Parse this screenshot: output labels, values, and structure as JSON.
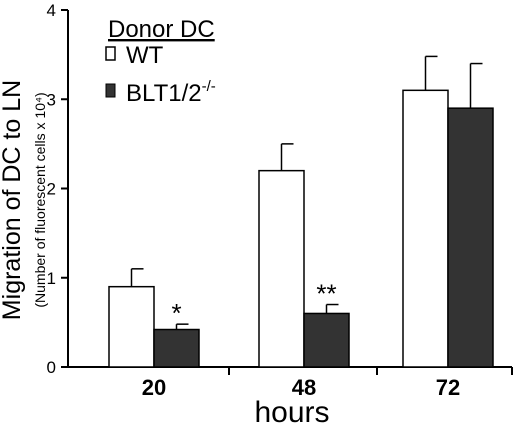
{
  "chart_data": {
    "type": "bar",
    "title": "",
    "ylabel_main": "Migration of DC to LN",
    "ylabel_sub": "(Number of fluorescent cells x 10⁴)",
    "xlabel": "hours",
    "categories": [
      "20",
      "48",
      "72"
    ],
    "ylim": [
      0,
      4
    ],
    "yticks": [
      0,
      1,
      2,
      3,
      4
    ],
    "grid": false,
    "legend": {
      "title": "Donor DC",
      "placement": "top-left",
      "entries": [
        "WT",
        "BLT1/2-/-"
      ]
    },
    "series": [
      {
        "name": "WT",
        "color": "#ffffff",
        "values": [
          0.9,
          2.2,
          3.1
        ],
        "errors": [
          0.2,
          0.3,
          0.38
        ]
      },
      {
        "name": "BLT1/2-/-",
        "color": "#333333",
        "values": [
          0.42,
          0.6,
          2.9
        ],
        "errors": [
          0.06,
          0.1,
          0.5
        ]
      }
    ],
    "annotations": [
      {
        "category": "20",
        "series": "BLT1/2-/-",
        "text": "*"
      },
      {
        "category": "48",
        "series": "BLT1/2-/-",
        "text": "**"
      }
    ]
  }
}
